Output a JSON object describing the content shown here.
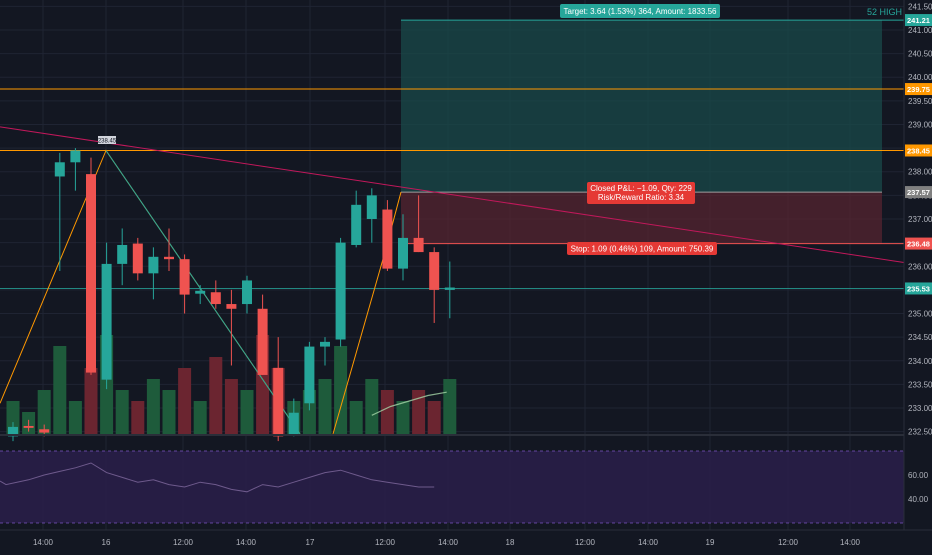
{
  "chart_data": {
    "type": "candlestick",
    "title": "",
    "price_axis": {
      "ylim": [
        232.45,
        241.55
      ],
      "ticks": [
        "241.50",
        "241.00",
        "240.50",
        "240.00",
        "239.50",
        "239.00",
        "238.50",
        "238.00",
        "237.50",
        "237.00",
        "236.50",
        "236.00",
        "235.50",
        "235.00",
        "234.50",
        "234.00",
        "233.50",
        "233.00",
        "232.50"
      ],
      "markers": [
        {
          "label": "241.21",
          "value": 241.21,
          "color": "#26a69a"
        },
        {
          "label": "239.75",
          "value": 239.75,
          "color": "#ff9800"
        },
        {
          "label": "238.45",
          "value": 238.45,
          "color": "#ff9800"
        },
        {
          "label": "237.57",
          "value": 237.57,
          "color": "#808080"
        },
        {
          "label": "236.48",
          "value": 236.48,
          "color": "#ef5350"
        },
        {
          "label": "235.53",
          "value": 235.53,
          "color": "#26a69a"
        }
      ]
    },
    "time_axis": {
      "ticks": [
        "14:00",
        "16",
        "12:00",
        "14:00",
        "17",
        "12:00",
        "14:00",
        "18",
        "12:00",
        "14:00",
        "19",
        "12:00",
        "14:00"
      ]
    },
    "candles": [
      {
        "o": 232.4,
        "h": 232.7,
        "l": 232.3,
        "c": 232.6
      },
      {
        "o": 232.62,
        "h": 232.75,
        "l": 232.5,
        "c": 232.58
      },
      {
        "o": 232.55,
        "h": 232.65,
        "l": 232.4,
        "c": 232.48
      },
      {
        "o": 237.9,
        "h": 238.4,
        "l": 235.9,
        "c": 238.2
      },
      {
        "o": 238.2,
        "h": 238.5,
        "l": 237.6,
        "c": 238.45
      },
      {
        "o": 237.95,
        "h": 238.3,
        "l": 233.7,
        "c": 233.75
      },
      {
        "o": 233.6,
        "h": 236.5,
        "l": 233.4,
        "c": 236.05
      },
      {
        "o": 236.05,
        "h": 236.8,
        "l": 235.6,
        "c": 236.45
      },
      {
        "o": 236.48,
        "h": 236.6,
        "l": 235.7,
        "c": 235.85
      },
      {
        "o": 235.85,
        "h": 236.4,
        "l": 235.3,
        "c": 236.2
      },
      {
        "o": 236.2,
        "h": 236.8,
        "l": 235.9,
        "c": 236.15
      },
      {
        "o": 236.15,
        "h": 236.25,
        "l": 235.0,
        "c": 235.4
      },
      {
        "o": 235.42,
        "h": 235.6,
        "l": 235.2,
        "c": 235.48
      },
      {
        "o": 235.45,
        "h": 235.7,
        "l": 235.1,
        "c": 235.2
      },
      {
        "o": 235.2,
        "h": 235.5,
        "l": 233.9,
        "c": 235.1
      },
      {
        "o": 235.2,
        "h": 235.8,
        "l": 235.0,
        "c": 235.7
      },
      {
        "o": 235.1,
        "h": 235.4,
        "l": 233.7,
        "c": 233.7
      },
      {
        "o": 233.85,
        "h": 234.5,
        "l": 232.3,
        "c": 232.4
      },
      {
        "o": 232.45,
        "h": 233.2,
        "l": 232.4,
        "c": 232.9
      },
      {
        "o": 233.1,
        "h": 234.4,
        "l": 232.95,
        "c": 234.3
      },
      {
        "o": 234.3,
        "h": 234.5,
        "l": 233.9,
        "c": 234.4
      },
      {
        "o": 234.45,
        "h": 236.6,
        "l": 234.3,
        "c": 236.5
      },
      {
        "o": 236.45,
        "h": 237.6,
        "l": 236.4,
        "c": 237.3
      },
      {
        "o": 237.0,
        "h": 237.65,
        "l": 236.5,
        "c": 237.5
      },
      {
        "o": 237.2,
        "h": 237.4,
        "l": 235.9,
        "c": 235.95
      },
      {
        "o": 235.95,
        "h": 237.1,
        "l": 235.7,
        "c": 236.6
      },
      {
        "o": 236.6,
        "h": 237.5,
        "l": 236.3,
        "c": 236.3
      },
      {
        "o": 236.3,
        "h": 236.4,
        "l": 234.8,
        "c": 235.5
      },
      {
        "o": 235.5,
        "h": 236.1,
        "l": 234.9,
        "c": 235.55
      }
    ],
    "volume_green": [
      true,
      true,
      true,
      true,
      true,
      false,
      true,
      true,
      false,
      true,
      true,
      false,
      true,
      false,
      false,
      true,
      false,
      false,
      true,
      true,
      true,
      true,
      true,
      true,
      false,
      true,
      false,
      false,
      true
    ],
    "volume_rel": [
      0.3,
      0.2,
      0.4,
      0.8,
      0.3,
      0.6,
      0.9,
      0.4,
      0.3,
      0.5,
      0.4,
      0.6,
      0.3,
      0.7,
      0.5,
      0.4,
      0.9,
      0.6,
      0.3,
      0.4,
      0.5,
      0.8,
      0.3,
      0.5,
      0.4,
      0.3,
      0.4,
      0.3,
      0.5
    ],
    "volume_ma_rel": [
      0.17,
      0.25,
      0.3,
      0.35,
      0.38
    ],
    "rsi_ticks": [
      "60.00",
      "40.00"
    ],
    "rsi_values": [
      55,
      52,
      56,
      60,
      63,
      66,
      70,
      62,
      58,
      54,
      56,
      52,
      50,
      54,
      52,
      48,
      46,
      52,
      50,
      54,
      58,
      62,
      64,
      60,
      56,
      54,
      52,
      50,
      50
    ],
    "trendline_label": "238.45"
  },
  "position": {
    "target_label": "Target: 3.64 (1.53%) 364, Amount: 1833.56",
    "closed_label": "Closed P&L: −1.09, Qty: 229",
    "rr_label": "Risk/Reward Ratio: 3.34",
    "stop_label": "Stop: 1.09 (0.46%) 109, Amount: 750.39",
    "high_label": "52 HIGH"
  },
  "colors": {
    "up": "#26a69a",
    "down": "#ef5350",
    "volume_up": "#1e5b3b",
    "volume_down": "#6b2530",
    "orange": "#ff9800",
    "trend_red": "#c2185b",
    "rsi_bg": "#2a1e4a"
  }
}
